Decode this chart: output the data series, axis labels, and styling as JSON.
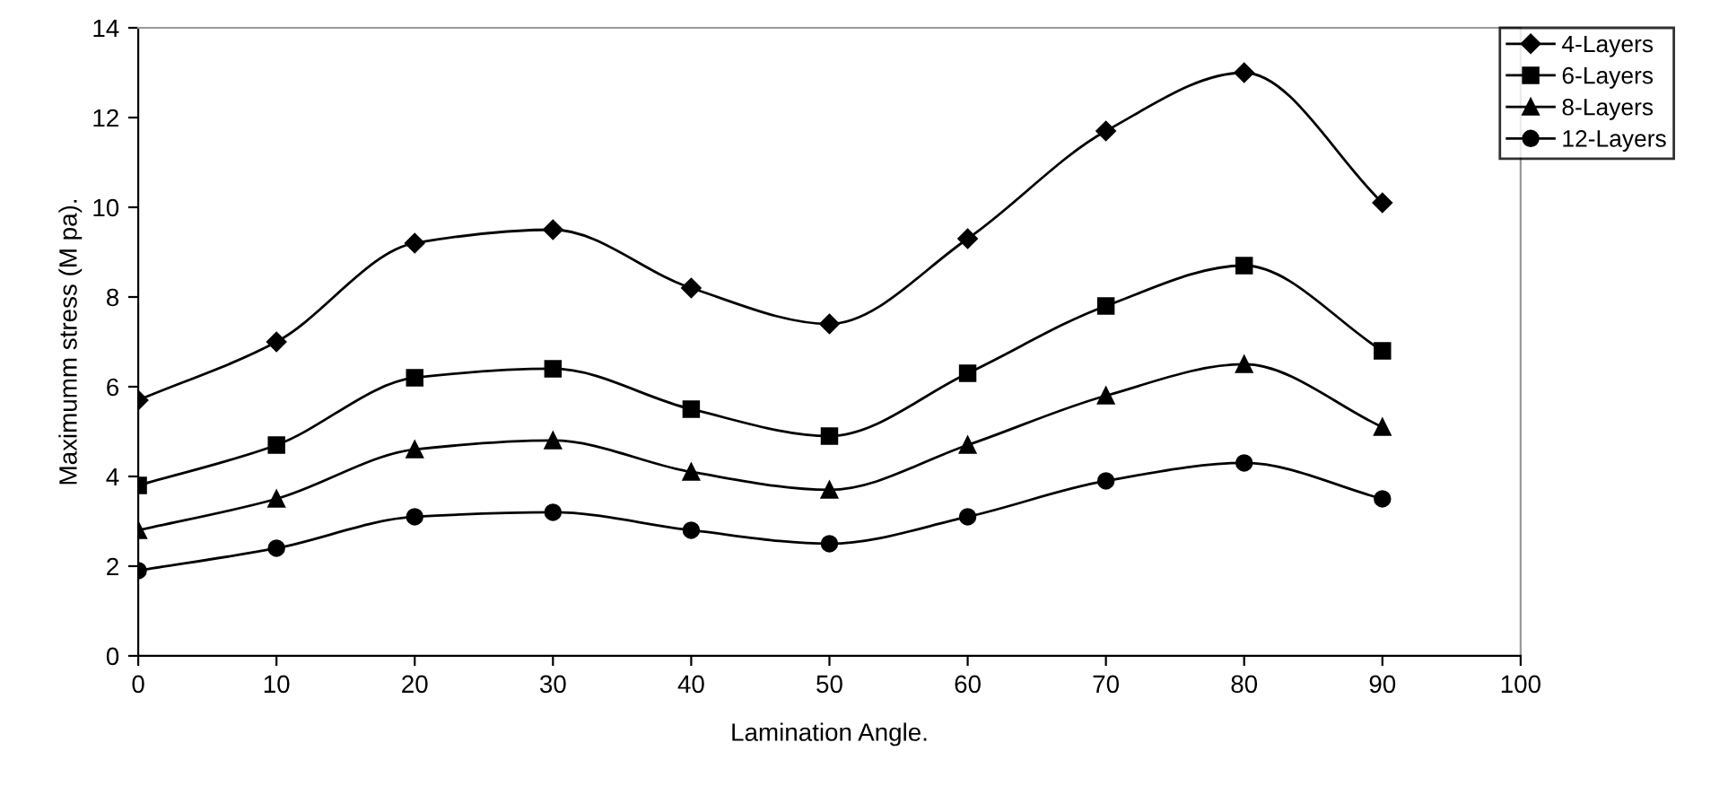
{
  "chart_data": {
    "type": "line",
    "xlabel": "Lamination Angle.",
    "ylabel": "Maximumm stress (M pa).",
    "x": [
      0,
      10,
      20,
      30,
      40,
      50,
      60,
      70,
      80,
      90
    ],
    "series": [
      {
        "name": "4-Layers",
        "color": "#000000",
        "marker": "diamond",
        "values": [
          5.7,
          7.0,
          9.2,
          9.5,
          8.2,
          7.4,
          9.3,
          11.7,
          13.0,
          10.1
        ]
      },
      {
        "name": "6-Layers",
        "color": "#000000",
        "marker": "square",
        "values": [
          3.8,
          4.7,
          6.2,
          6.4,
          5.5,
          4.9,
          6.3,
          7.8,
          8.7,
          6.8
        ]
      },
      {
        "name": "8-Layers",
        "color": "#000000",
        "marker": "triangle",
        "values": [
          2.8,
          3.5,
          4.6,
          4.8,
          4.1,
          3.7,
          4.7,
          5.8,
          6.5,
          5.1
        ]
      },
      {
        "name": "12-Layers",
        "color": "#000000",
        "marker": "circle",
        "values": [
          1.9,
          2.4,
          3.1,
          3.2,
          2.8,
          2.5,
          3.1,
          3.9,
          4.3,
          3.5
        ]
      }
    ],
    "xlim": [
      0,
      100
    ],
    "xticks": [
      0,
      10,
      20,
      30,
      40,
      50,
      60,
      70,
      80,
      90,
      100
    ],
    "ylim": [
      0,
      14
    ],
    "yticks": [
      0,
      2,
      4,
      6,
      8,
      10,
      12,
      14
    ],
    "grid": false,
    "legend": "top right",
    "line_style": "solid"
  }
}
